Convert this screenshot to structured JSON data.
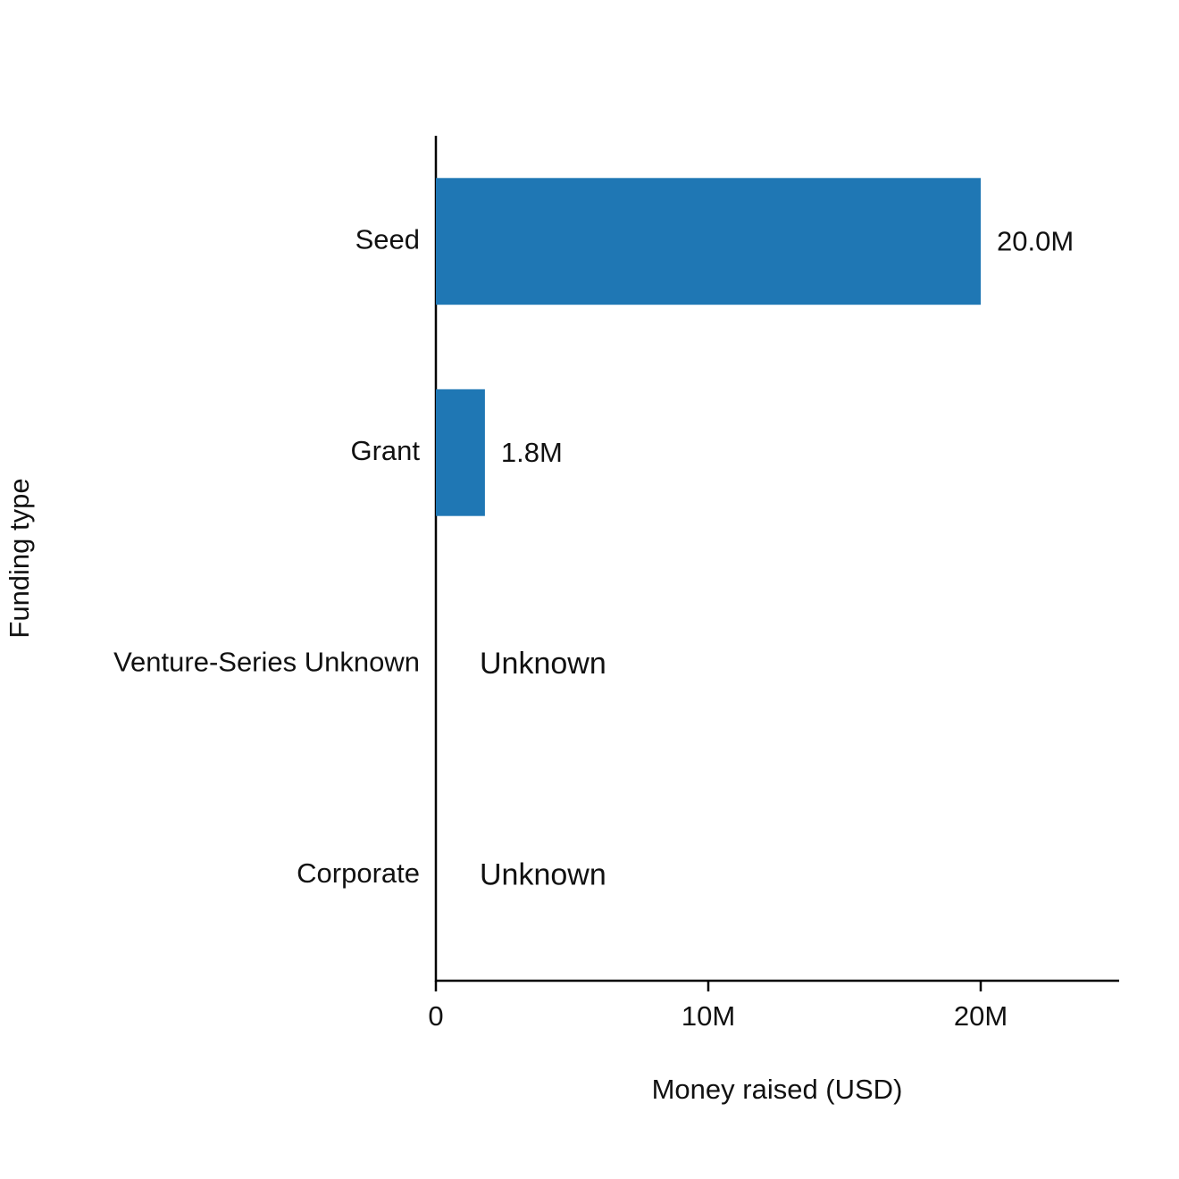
{
  "chart_data": {
    "type": "barh",
    "categories": [
      "Seed",
      "Grant",
      "Venture-Series Unknown",
      "Corporate"
    ],
    "values": [
      20000000,
      1800000,
      null,
      null
    ],
    "value_labels": [
      "20.0M",
      "1.8M",
      "Unknown",
      "Unknown"
    ],
    "color": "#1f77b4",
    "xlim": [
      0,
      25000000
    ],
    "xticks": [
      0,
      {
        "value": 10000000,
        "label": "10M"
      },
      {
        "value": 20000000,
        "label": "20M"
      }
    ],
    "x_label": "Money raised (USD)",
    "y_label": "Funding type",
    "grid": false
  }
}
